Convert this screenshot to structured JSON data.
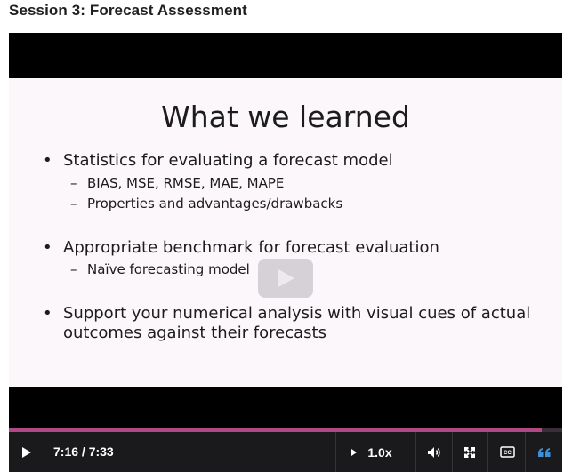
{
  "page": {
    "session_title": "Session 3: Forecast Assessment"
  },
  "slide": {
    "title": "What we learned",
    "bullets": [
      {
        "text": "Statistics for evaluating a forecast model",
        "subs": [
          "BIAS, MSE, RMSE, MAE, MAPE",
          "Properties and advantages/drawbacks"
        ]
      },
      {
        "text": "Appropriate benchmark for forecast evaluation",
        "subs": [
          "Naïve forecasting model"
        ]
      },
      {
        "text_line1": "Support your numerical analysis with visual cues of actual",
        "text_line2": "outcomes against their forecasts"
      }
    ]
  },
  "player": {
    "current_time": "7:16",
    "duration": "7:33",
    "time_display": "7:16 / 7:33",
    "progress_fraction": 0.963,
    "speed": "1.0x"
  },
  "icons": {
    "play": "play-icon",
    "speed_arrow": "caret-right-icon",
    "volume": "volume-icon",
    "fullscreen": "fullscreen-icon",
    "captions": "cc-icon",
    "transcript": "quote-icon"
  },
  "colors": {
    "progress": "#b04a86",
    "transcript_icon": "#3d8fd6",
    "controls_bg": "#1a1a1d"
  }
}
